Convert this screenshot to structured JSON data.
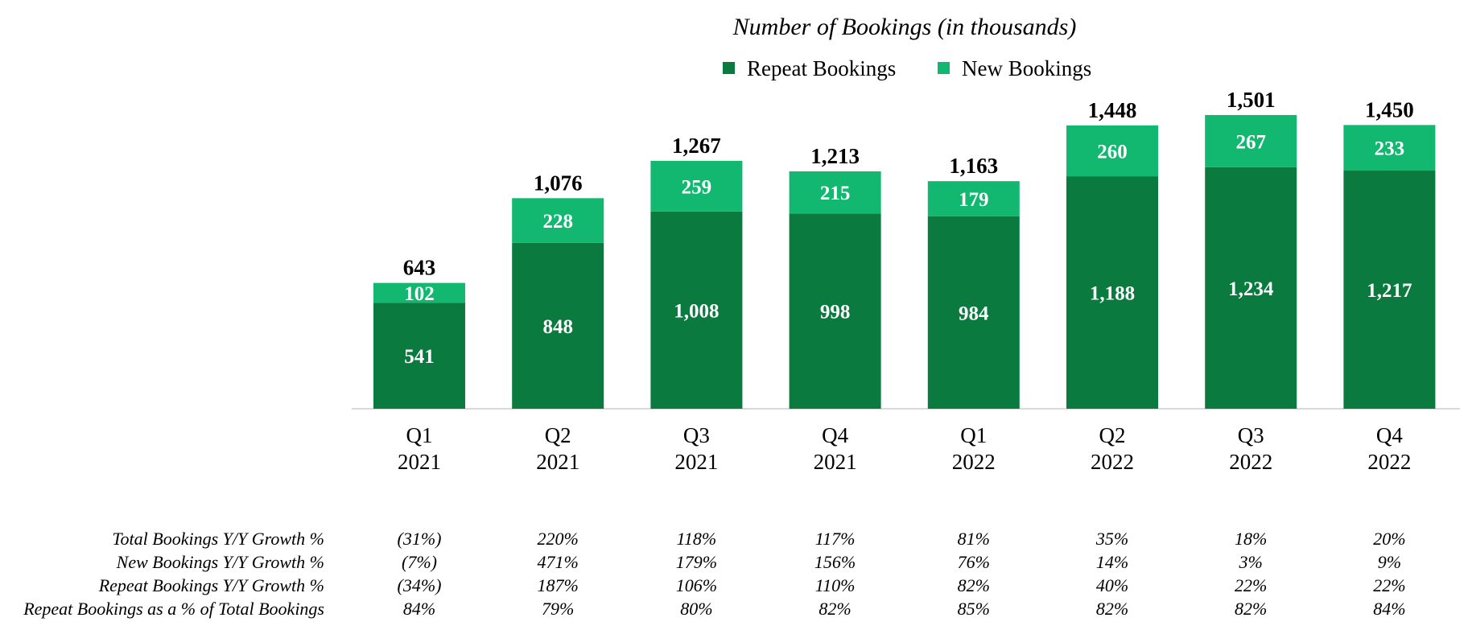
{
  "chart_data": {
    "type": "bar",
    "stacked": true,
    "title": "Number of Bookings (in thousands)",
    "xlabel": "",
    "ylabel": "",
    "grid": false,
    "legend_position": "top",
    "ylim": [
      0,
      1600
    ],
    "categories": [
      [
        "Q1",
        "2021"
      ],
      [
        "Q2",
        "2021"
      ],
      [
        "Q3",
        "2021"
      ],
      [
        "Q4",
        "2021"
      ],
      [
        "Q1",
        "2022"
      ],
      [
        "Q2",
        "2022"
      ],
      [
        "Q3",
        "2022"
      ],
      [
        "Q4",
        "2022"
      ]
    ],
    "series": [
      {
        "name": "Repeat Bookings",
        "color": "#0b7a3e",
        "values": [
          541,
          848,
          1008,
          998,
          984,
          1188,
          1234,
          1217
        ],
        "labels": [
          "541",
          "848",
          "1,008",
          "998",
          "984",
          "1,188",
          "1,234",
          "1,217"
        ]
      },
      {
        "name": "New Bookings",
        "color": "#12b870",
        "values": [
          102,
          228,
          259,
          215,
          179,
          260,
          267,
          233
        ],
        "labels": [
          "102",
          "228",
          "259",
          "215",
          "179",
          "260",
          "267",
          "233"
        ]
      }
    ],
    "totals": [
      643,
      1076,
      1267,
      1213,
      1163,
      1448,
      1501,
      1450
    ],
    "total_labels": [
      "643",
      "1,076",
      "1,267",
      "1,213",
      "1,163",
      "1,448",
      "1,501",
      "1,450"
    ],
    "table": [
      {
        "label": "Total Bookings Y/Y Growth %",
        "values": [
          "(31%)",
          "220%",
          "118%",
          "117%",
          "81%",
          "35%",
          "18%",
          "20%"
        ]
      },
      {
        "label": "New Bookings Y/Y Growth %",
        "values": [
          "(7%)",
          "471%",
          "179%",
          "156%",
          "76%",
          "14%",
          "3%",
          "9%"
        ]
      },
      {
        "label": "Repeat Bookings Y/Y Growth %",
        "values": [
          "(34%)",
          "187%",
          "106%",
          "110%",
          "82%",
          "40%",
          "22%",
          "22%"
        ]
      },
      {
        "label": "Repeat Bookings as a % of Total Bookings",
        "values": [
          "84%",
          "79%",
          "80%",
          "82%",
          "85%",
          "82%",
          "82%",
          "84%"
        ]
      }
    ]
  }
}
